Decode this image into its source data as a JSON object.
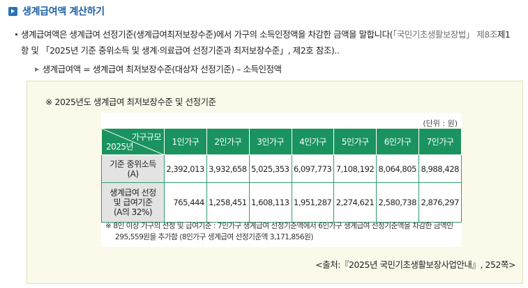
{
  "section": {
    "title": "생계급여액 계산하기"
  },
  "paragraph": {
    "main": "생계급여액은 생계급여 선정기준(생계급여최저보장수준)에서 가구의 소득인정액을 차감한 금액을 말합니다(",
    "ref1": "「국민기초생활보장법」 제8조",
    "ref2": "제1항 및 「2025년 기준 중위소득 및 생계·의료급여 선정기준과 최저보장수준」, 제2호 참조)..",
    "formula": "생계급여액 = 생계급여 최저보장수준(대상자 선정기준) – 소득인정액"
  },
  "box": {
    "title": "※ 2025년도 생계급여 최저보장수준 및 선정기준",
    "unit": "(단위 : 원)",
    "corner_top": "가구규모",
    "corner_bottom": "2025년",
    "columns": [
      "1인가구",
      "2인가구",
      "3인가구",
      "4인가구",
      "5인가구",
      "6인가구",
      "7인가구"
    ],
    "rows": [
      {
        "label_line1": "기준 중위소득",
        "label_line2": "(A)",
        "label_line3": "",
        "values": [
          "2,392,013",
          "3,932,658",
          "5,025,353",
          "6,097,773",
          "7,108,192",
          "8,064,805",
          "8,988,428"
        ]
      },
      {
        "label_line1": "생계급여 선정",
        "label_line2": "및 급여기준",
        "label_line3": "(A의 32%)",
        "values": [
          "765,444",
          "1,258,451",
          "1,608,113",
          "1,951,287",
          "2,274,621",
          "2,580,738",
          "2,876,297"
        ]
      }
    ],
    "note": "※ 8인 이상 가구의 선정 및 급여기준 : 7인가구 생계급여 선정기준액에서 6인가구 생계급여 선정기준액을 차감한 금액인 295,559원을 추가함 (8인가구 생계급여 선정기준액 3,171,856원)",
    "source": "<출처:『2025년 국민기초생활보장사업안내』, 252쪽>"
  },
  "colors": {
    "accent_blue": "#1f5fa8",
    "table_header_green": "#1a9360",
    "box_background": "#fbf9ea"
  }
}
